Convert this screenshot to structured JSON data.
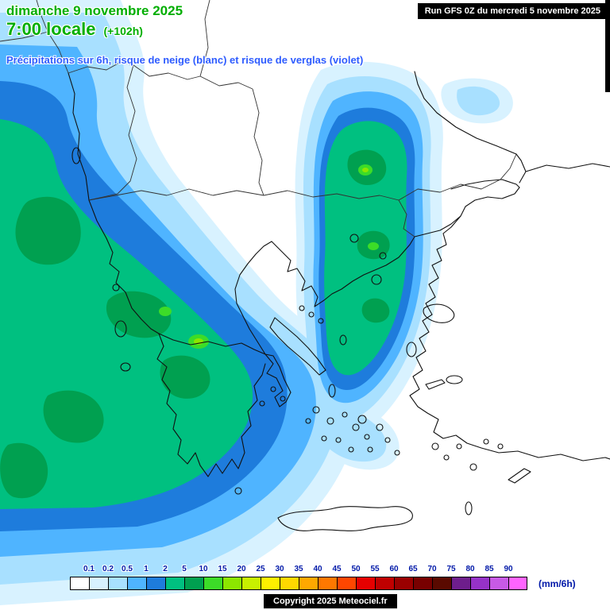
{
  "header": {
    "date_line": "dimanche 9 novembre 2025",
    "time_line": "7:00 locale",
    "run_offset": "(+102h)",
    "run_info": "Run GFS 0Z du mercredi 5 novembre 2025",
    "subtitle": "Précipitations sur 6h, risque de neige (blanc) et risque de verglas (violet)"
  },
  "legend": {
    "values": [
      "0.1",
      "0.2",
      "0.5",
      "1",
      "2",
      "5",
      "10",
      "15",
      "20",
      "25",
      "30",
      "35",
      "40",
      "45",
      "50",
      "55",
      "60",
      "65",
      "70",
      "75",
      "80",
      "85",
      "90"
    ],
    "colors": [
      "#FFFFFF",
      "#D8F2FF",
      "#A8E0FF",
      "#4FB4FF",
      "#1E7CDC",
      "#00C080",
      "#00A050",
      "#3CDC28",
      "#8CE600",
      "#C8F000",
      "#FFF000",
      "#FFD800",
      "#FFA800",
      "#FF7800",
      "#FF4600",
      "#E60000",
      "#C00000",
      "#9A0000",
      "#780000",
      "#5A0A00",
      "#6E1E8C",
      "#9632C8",
      "#C85AE6",
      "#FF64FF"
    ],
    "unit_label": "(mm/6h)"
  },
  "footer": {
    "copyright": "Copyright 2025 Meteociel.fr"
  },
  "colors": {
    "title_green": "#00AE00",
    "subtitle_blue": "#2E5CFF",
    "legend_value_blue": "#0018A8",
    "precip_pale": "#D8F2FF",
    "precip_light": "#A8E0FF",
    "precip_cyan": "#4FB4FF",
    "precip_blue": "#1E7CDC",
    "precip_green": "#00C080",
    "precip_dark_green": "#00A050",
    "precip_bright_green": "#3CDC28",
    "precip_chartreuse": "#8CE600"
  }
}
